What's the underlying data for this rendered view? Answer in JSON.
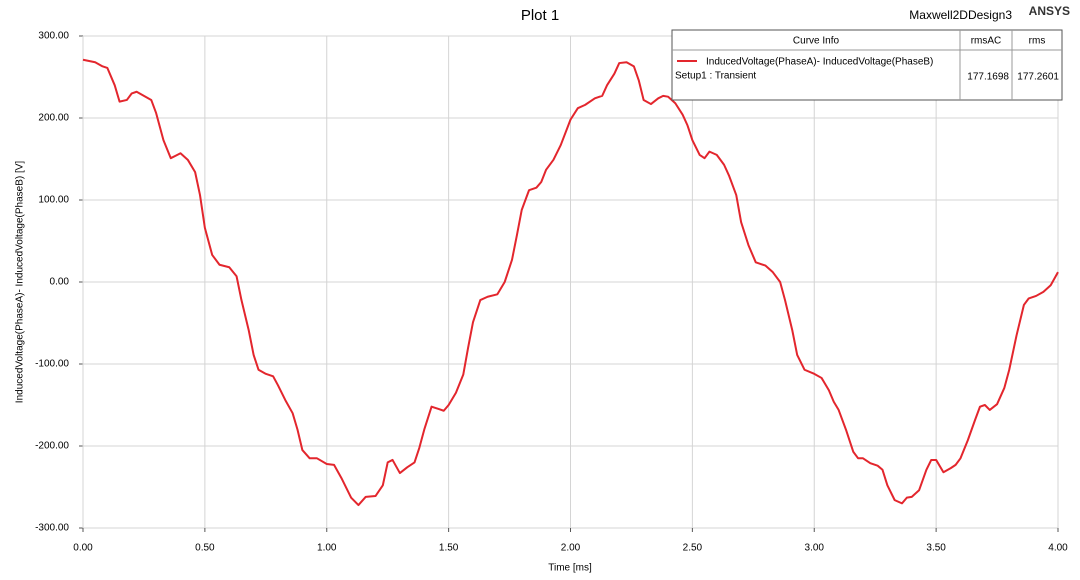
{
  "chart_data": {
    "type": "line",
    "title": "Plot 1",
    "design": "Maxwell2DDesign3",
    "brand": "ANSYS",
    "xlabel": "Time [ms]",
    "ylabel": "InducedVoltage(PhaseA)- InducedVoltage(PhaseB) [V]",
    "x": [
      0,
      0.05,
      0.08,
      0.1,
      0.13,
      0.15,
      0.18,
      0.2,
      0.22,
      0.25,
      0.28,
      0.3,
      0.33,
      0.36,
      0.38,
      0.4,
      0.43,
      0.46,
      0.48,
      0.5,
      0.53,
      0.56,
      0.6,
      0.63,
      0.65,
      0.68,
      0.7,
      0.72,
      0.75,
      0.78,
      0.8,
      0.83,
      0.86,
      0.88,
      0.9,
      0.93,
      0.96,
      1.0,
      1.03,
      1.06,
      1.1,
      1.13,
      1.16,
      1.2,
      1.23,
      1.25,
      1.27,
      1.3,
      1.33,
      1.36,
      1.38,
      1.4,
      1.43,
      1.46,
      1.48,
      1.5,
      1.53,
      1.56,
      1.58,
      1.6,
      1.63,
      1.66,
      1.7,
      1.73,
      1.76,
      1.78,
      1.8,
      1.83,
      1.86,
      1.88,
      1.9,
      1.93,
      1.96,
      2.0,
      2.03,
      2.06,
      2.1,
      2.13,
      2.15,
      2.18,
      2.2,
      2.23,
      2.26,
      2.28,
      2.3,
      2.33,
      2.36,
      2.38,
      2.4,
      2.43,
      2.46,
      2.48,
      2.5,
      2.53,
      2.55,
      2.57,
      2.6,
      2.63,
      2.65,
      2.68,
      2.7,
      2.73,
      2.76,
      2.8,
      2.83,
      2.86,
      2.88,
      2.91,
      2.93,
      2.96,
      3.0,
      3.03,
      3.06,
      3.08,
      3.1,
      3.13,
      3.16,
      3.18,
      3.2,
      3.23,
      3.26,
      3.28,
      3.3,
      3.33,
      3.36,
      3.38,
      3.4,
      3.43,
      3.46,
      3.48,
      3.5,
      3.53,
      3.56,
      3.58,
      3.6,
      3.63,
      3.66,
      3.68,
      3.7,
      3.72,
      3.75,
      3.78,
      3.8,
      3.83,
      3.86,
      3.88,
      3.91,
      3.94,
      3.97,
      4.0
    ],
    "series": [
      {
        "name": "InducedVoltage(PhaseA)- InducedVoltage(PhaseB)",
        "color": "#e3262d",
        "values": [
          271,
          268,
          263,
          261,
          240,
          220,
          222,
          230,
          232,
          227,
          222,
          206,
          173,
          151,
          154,
          157,
          149,
          134,
          106,
          66,
          33,
          21,
          18,
          7,
          -22,
          -59,
          -89,
          -107,
          -112,
          -115,
          -126,
          -144,
          -160,
          -180,
          -205,
          -215,
          -215,
          -222,
          -223,
          -239,
          -263,
          -272,
          -262,
          -261,
          -248,
          -220,
          -217,
          -233,
          -226,
          -220,
          -202,
          -180,
          -152,
          -155,
          -157,
          -150,
          -135,
          -113,
          -80,
          -49,
          -22,
          -18,
          -15,
          0,
          27,
          57,
          88,
          112,
          115,
          122,
          137,
          149,
          167,
          198,
          212,
          216,
          224,
          227,
          240,
          254,
          267,
          268,
          263,
          246,
          222,
          217,
          224,
          227,
          226,
          218,
          204,
          191,
          173,
          155,
          151,
          159,
          155,
          143,
          130,
          106,
          73,
          45,
          24,
          20,
          12,
          0,
          -22,
          -59,
          -89,
          -107,
          -112,
          -117,
          -132,
          -146,
          -156,
          -180,
          -207,
          -215,
          -215,
          -221,
          -224,
          -229,
          -248,
          -266,
          -270,
          -263,
          -262,
          -254,
          -229,
          -217,
          -217,
          -232,
          -227,
          -223,
          -215,
          -193,
          -168,
          -152,
          -150,
          -156,
          -149,
          -129,
          -107,
          -65,
          -28,
          -20,
          -17,
          -12,
          -4,
          12
        ]
      }
    ],
    "xlim": [
      0,
      4
    ],
    "ylim": [
      -300,
      300
    ],
    "xticks": [
      {
        "value": 0,
        "label": "0.00"
      },
      {
        "value": 0.5,
        "label": "0.50"
      },
      {
        "value": 1,
        "label": "1.00"
      },
      {
        "value": 1.5,
        "label": "1.50"
      },
      {
        "value": 2,
        "label": "2.00"
      },
      {
        "value": 2.5,
        "label": "2.50"
      },
      {
        "value": 3,
        "label": "3.00"
      },
      {
        "value": 3.5,
        "label": "3.50"
      },
      {
        "value": 4,
        "label": "4.00"
      }
    ],
    "yticks": [
      {
        "value": -300,
        "label": "-300.00"
      },
      {
        "value": -200,
        "label": "-200.00"
      },
      {
        "value": -100,
        "label": "-100.00"
      },
      {
        "value": 0,
        "label": "0.00"
      },
      {
        "value": 100,
        "label": "100.00"
      },
      {
        "value": 200,
        "label": "200.00"
      },
      {
        "value": 300,
        "label": "300.00"
      }
    ],
    "grid": true,
    "legend": {
      "header": [
        "Curve Info",
        "rmsAC",
        "rms"
      ],
      "setup": "Setup1 : Transient",
      "rmsAC": "177.1698",
      "rms": "177.2601"
    }
  }
}
